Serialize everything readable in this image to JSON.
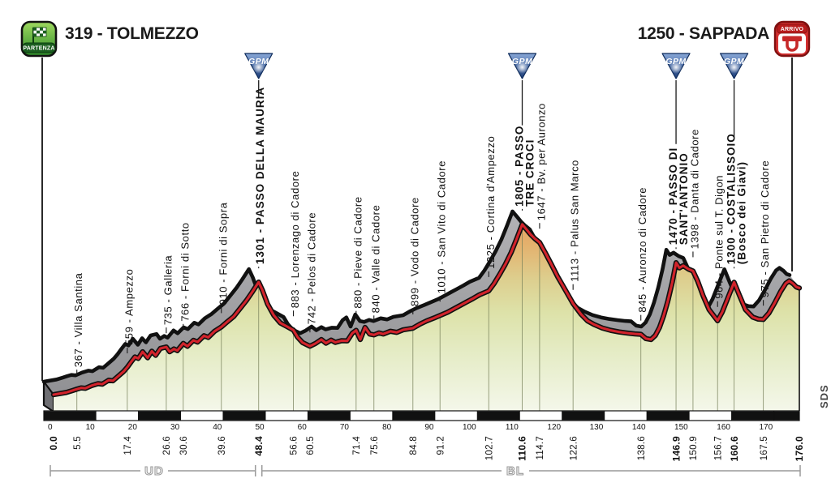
{
  "header": {
    "start_title": "319 - TOLMEZZO",
    "finish_title": "1250 - SAPPADA",
    "start_badge_label": "PARTENZA",
    "finish_badge_label": "ARRIVO"
  },
  "footer": {
    "province_brackets": [
      {
        "label": "UD",
        "from_km": 0,
        "to_km": 48.4
      },
      {
        "label": "BL",
        "from_km": 48.4,
        "to_km": 176
      }
    ],
    "credit": "SDS"
  },
  "colors": {
    "profile_red": "#d2232b",
    "outline_black": "#111111",
    "band_gray_light": "#b3b3b6",
    "band_gray_dark": "#8e8e91",
    "side_face_gray": "#6f6f73",
    "terrain_top_orange": "#e79b5e",
    "terrain_mid_green": "#dde2a9",
    "terrain_base_pale": "#f4f7ea",
    "gpm_blue_light": "#89a8d8",
    "gpm_blue_dark": "#1b3c78",
    "partenza_green": "#3f9c35",
    "arrivo_red": "#d32f2f"
  },
  "chart_data": {
    "type": "area",
    "x_unit": "km",
    "y_unit": "m",
    "xlim": [
      0,
      176
    ],
    "y_range": [
      319,
      1805
    ],
    "grid": false,
    "gpm_label": "GPM",
    "x_ticks": [
      0,
      10,
      20,
      30,
      40,
      50,
      60,
      70,
      80,
      90,
      100,
      110,
      120,
      130,
      140,
      150,
      160,
      170
    ],
    "km_labels": [
      {
        "km": 0.0,
        "text": "0.0",
        "bold": true
      },
      {
        "km": 5.5,
        "text": "5.5",
        "bold": false
      },
      {
        "km": 17.4,
        "text": "17.4",
        "bold": false
      },
      {
        "km": 26.6,
        "text": "26.6",
        "bold": false
      },
      {
        "km": 30.6,
        "text": "30.6",
        "bold": false
      },
      {
        "km": 39.6,
        "text": "39.6",
        "bold": false
      },
      {
        "km": 48.4,
        "text": "48.4",
        "bold": true
      },
      {
        "km": 56.6,
        "text": "56.6",
        "bold": false
      },
      {
        "km": 60.5,
        "text": "60.5",
        "bold": false
      },
      {
        "km": 71.4,
        "text": "71.4",
        "bold": false
      },
      {
        "km": 75.6,
        "text": "75.6",
        "bold": false
      },
      {
        "km": 84.8,
        "text": "84.8",
        "bold": false
      },
      {
        "km": 91.2,
        "text": "91.2",
        "bold": false
      },
      {
        "km": 102.7,
        "text": "102.7",
        "bold": false
      },
      {
        "km": 110.6,
        "text": "110.6",
        "bold": true
      },
      {
        "km": 114.7,
        "text": "114.7",
        "bold": false
      },
      {
        "km": 122.6,
        "text": "122.6",
        "bold": false
      },
      {
        "km": 138.6,
        "text": "138.6",
        "bold": false
      },
      {
        "km": 146.9,
        "text": "146.9",
        "bold": true
      },
      {
        "km": 150.9,
        "text": "150.9",
        "bold": false
      },
      {
        "km": 156.7,
        "text": "156.7",
        "bold": false
      },
      {
        "km": 160.6,
        "text": "160.6",
        "bold": true
      },
      {
        "km": 167.5,
        "text": "167.5",
        "bold": false
      },
      {
        "km": 176.0,
        "text": "176.0",
        "bold": true
      }
    ],
    "waypoints": [
      {
        "km": 5.5,
        "elev": 367,
        "lines": [
          "367 - Villa Santina"
        ],
        "bold": false,
        "gpm": false
      },
      {
        "km": 17.4,
        "elev": 559,
        "lines": [
          "559 - Ampezzo"
        ],
        "bold": false,
        "gpm": false
      },
      {
        "km": 26.6,
        "elev": 735,
        "lines": [
          "735 - Galleria"
        ],
        "bold": false,
        "gpm": false
      },
      {
        "km": 30.6,
        "elev": 766,
        "lines": [
          "766 - Forni di Sotto"
        ],
        "bold": false,
        "gpm": false
      },
      {
        "km": 39.6,
        "elev": 910,
        "lines": [
          "910 - Forni di Sopra"
        ],
        "bold": false,
        "gpm": false
      },
      {
        "km": 48.4,
        "elev": 1301,
        "lines": [
          "1301 - PASSO DELLA MAURIA"
        ],
        "bold": true,
        "gpm": true
      },
      {
        "km": 56.6,
        "elev": 883,
        "lines": [
          "883 - Lorenzago di Cadore"
        ],
        "bold": false,
        "gpm": false
      },
      {
        "km": 60.5,
        "elev": 742,
        "lines": [
          "742 - Pelos di Cadore"
        ],
        "bold": false,
        "gpm": false
      },
      {
        "km": 71.4,
        "elev": 880,
        "lines": [
          "880 - Pieve di Cadore"
        ],
        "bold": false,
        "gpm": false
      },
      {
        "km": 75.6,
        "elev": 840,
        "lines": [
          "840 - Valle di Cadore"
        ],
        "bold": false,
        "gpm": false
      },
      {
        "km": 84.8,
        "elev": 899,
        "lines": [
          "899 - Vodo di Cadore"
        ],
        "bold": false,
        "gpm": false
      },
      {
        "km": 91.2,
        "elev": 1010,
        "lines": [
          "1010 - San Vito di Cadore"
        ],
        "bold": false,
        "gpm": false
      },
      {
        "km": 102.7,
        "elev": 1225,
        "lines": [
          "1225 - Cortina d'Ampezzo"
        ],
        "bold": false,
        "gpm": false
      },
      {
        "km": 110.6,
        "elev": 1805,
        "lines": [
          "1805 - PASSO",
          "TRE CROCI"
        ],
        "bold": true,
        "gpm": true
      },
      {
        "km": 114.7,
        "elev": 1647,
        "lines": [
          "1647 - Bv. per Auronzo"
        ],
        "bold": false,
        "gpm": false
      },
      {
        "km": 122.6,
        "elev": 1113,
        "lines": [
          "1113 - Palus San Marco"
        ],
        "bold": false,
        "gpm": false
      },
      {
        "km": 138.6,
        "elev": 845,
        "lines": [
          "845 - Auronzo di Cadore"
        ],
        "bold": false,
        "gpm": false
      },
      {
        "km": 146.9,
        "elev": 1470,
        "lines": [
          "1470 - PASSO DI",
          "SANT'ANTONIO"
        ],
        "bold": true,
        "gpm": true
      },
      {
        "km": 150.9,
        "elev": 1398,
        "lines": [
          "1398 - Danta di Cadore"
        ],
        "bold": false,
        "gpm": false
      },
      {
        "km": 156.7,
        "elev": 964,
        "lines": [
          "964 - Ponte sul T. Digon"
        ],
        "bold": false,
        "gpm": false
      },
      {
        "km": 160.6,
        "elev": 1300,
        "lines": [
          "1300 - COSTALISSOIO",
          "(Bosco dei Giavi)"
        ],
        "bold": true,
        "gpm": true
      },
      {
        "km": 167.5,
        "elev": 975,
        "lines": [
          "975 - San Pietro di Cadore"
        ],
        "bold": false,
        "gpm": false
      }
    ],
    "profile": [
      [
        0,
        319
      ],
      [
        1.5,
        328
      ],
      [
        3,
        338
      ],
      [
        4.5,
        355
      ],
      [
        5.5,
        367
      ],
      [
        6.5,
        378
      ],
      [
        7.5,
        374
      ],
      [
        9,
        398
      ],
      [
        10.5,
        415
      ],
      [
        11.5,
        410
      ],
      [
        13,
        445
      ],
      [
        14,
        440
      ],
      [
        15.5,
        487
      ],
      [
        16.5,
        520
      ],
      [
        17.4,
        559
      ],
      [
        18.3,
        605
      ],
      [
        19.2,
        648
      ],
      [
        20,
        635
      ],
      [
        21,
        693
      ],
      [
        22.2,
        641
      ],
      [
        23.2,
        698
      ],
      [
        24.1,
        662
      ],
      [
        25.2,
        722
      ],
      [
        26.6,
        735
      ],
      [
        27.4,
        693
      ],
      [
        28.4,
        718
      ],
      [
        29.2,
        703
      ],
      [
        30.6,
        766
      ],
      [
        31.6,
        741
      ],
      [
        33,
        793
      ],
      [
        34,
        778
      ],
      [
        35.5,
        833
      ],
      [
        36.5,
        818
      ],
      [
        38,
        872
      ],
      [
        39.6,
        910
      ],
      [
        41,
        955
      ],
      [
        42.5,
        1000
      ],
      [
        44,
        1070
      ],
      [
        45.5,
        1140
      ],
      [
        46.8,
        1210
      ],
      [
        48.4,
        1301
      ],
      [
        49.3,
        1230
      ],
      [
        50.5,
        1110
      ],
      [
        52,
        1010
      ],
      [
        53.5,
        945
      ],
      [
        55,
        915
      ],
      [
        56.6,
        883
      ],
      [
        57.6,
        820
      ],
      [
        58.8,
        772
      ],
      [
        60.5,
        742
      ],
      [
        61.8,
        765
      ],
      [
        63.2,
        800
      ],
      [
        64.3,
        768
      ],
      [
        65.5,
        795
      ],
      [
        66.5,
        775
      ],
      [
        68,
        790
      ],
      [
        69.3,
        788
      ],
      [
        70.5,
        855
      ],
      [
        71.4,
        880
      ],
      [
        72.4,
        800
      ],
      [
        73.5,
        905
      ],
      [
        74.6,
        848
      ],
      [
        75.6,
        840
      ],
      [
        76.8,
        858
      ],
      [
        77.8,
        848
      ],
      [
        79.5,
        872
      ],
      [
        81,
        862
      ],
      [
        82.5,
        885
      ],
      [
        84.8,
        899
      ],
      [
        86.5,
        935
      ],
      [
        88,
        962
      ],
      [
        89.8,
        988
      ],
      [
        91.2,
        1010
      ],
      [
        93,
        1038
      ],
      [
        94.5,
        1068
      ],
      [
        96,
        1098
      ],
      [
        97.5,
        1128
      ],
      [
        99,
        1158
      ],
      [
        100.5,
        1190
      ],
      [
        102.7,
        1225
      ],
      [
        104,
        1290
      ],
      [
        105.3,
        1370
      ],
      [
        106.6,
        1455
      ],
      [
        108,
        1560
      ],
      [
        109.3,
        1680
      ],
      [
        110.6,
        1805
      ],
      [
        111.6,
        1762
      ],
      [
        112.6,
        1716
      ],
      [
        113.6,
        1680
      ],
      [
        114.7,
        1647
      ],
      [
        116,
        1560
      ],
      [
        117.5,
        1455
      ],
      [
        119,
        1345
      ],
      [
        120.8,
        1230
      ],
      [
        122.6,
        1113
      ],
      [
        124.5,
        1020
      ],
      [
        126,
        963
      ],
      [
        127.5,
        932
      ],
      [
        129.5,
        900
      ],
      [
        131.5,
        880
      ],
      [
        133.5,
        866
      ],
      [
        135.5,
        856
      ],
      [
        137.2,
        849
      ],
      [
        138.6,
        845
      ],
      [
        139.8,
        808
      ],
      [
        141,
        800
      ],
      [
        142,
        835
      ],
      [
        143,
        905
      ],
      [
        144,
        1010
      ],
      [
        145,
        1140
      ],
      [
        146,
        1300
      ],
      [
        146.9,
        1470
      ],
      [
        147.7,
        1425
      ],
      [
        148.6,
        1445
      ],
      [
        149.8,
        1415
      ],
      [
        150.9,
        1398
      ],
      [
        152,
        1310
      ],
      [
        153.3,
        1180
      ],
      [
        154.7,
        1060
      ],
      [
        156.7,
        964
      ],
      [
        157.8,
        1040
      ],
      [
        159,
        1150
      ],
      [
        160.6,
        1300
      ],
      [
        161.8,
        1190
      ],
      [
        163.3,
        1060
      ],
      [
        165,
        995
      ],
      [
        166.3,
        978
      ],
      [
        167.5,
        975
      ],
      [
        168.8,
        1030
      ],
      [
        170.2,
        1120
      ],
      [
        171.6,
        1220
      ],
      [
        172.8,
        1290
      ],
      [
        173.6,
        1312
      ],
      [
        174.6,
        1285
      ],
      [
        175.3,
        1258
      ],
      [
        176,
        1250
      ]
    ]
  }
}
